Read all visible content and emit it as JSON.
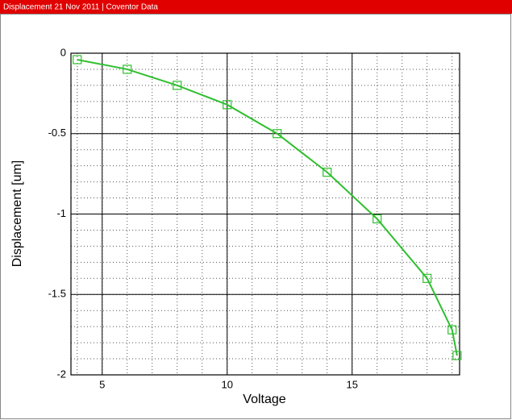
{
  "header": {
    "title": "Displacement   21 Nov 2011  |  Coventor Data"
  },
  "chart_data": {
    "type": "line",
    "xlabel": "Voltage",
    "ylabel": "Displacement [um]",
    "x": [
      4,
      6,
      8,
      10,
      12,
      14,
      16,
      18,
      19,
      19.2
    ],
    "series": [
      {
        "name": "Displacement",
        "color": "#2fbf2f",
        "values": [
          -0.04,
          -0.1,
          -0.2,
          -0.32,
          -0.5,
          -0.74,
          -1.03,
          -1.4,
          -1.72,
          -1.88
        ]
      }
    ],
    "xlim": [
      3.75,
      19.3
    ],
    "xticks": [
      5,
      10,
      15
    ],
    "ylim": [
      -2,
      0
    ],
    "yticks": [
      0,
      -0.5,
      -1,
      -1.5,
      -2
    ],
    "grid": true
  }
}
